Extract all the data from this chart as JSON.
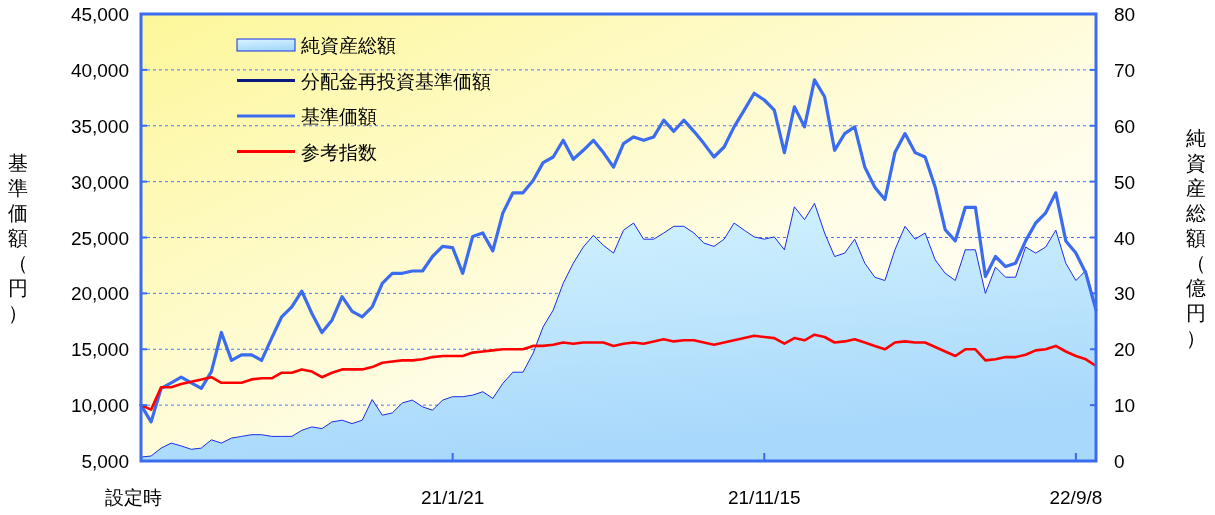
{
  "chart_data": {
    "type": "line",
    "ylabel": "基準価額（円）",
    "y2label": "純資産総額（億円）",
    "categories": [
      "設定時",
      null,
      null,
      null,
      null,
      null,
      null,
      null,
      null,
      null,
      null,
      null,
      null,
      null,
      null,
      null,
      null,
      null,
      null,
      null,
      null,
      null,
      null,
      null,
      null,
      null,
      null,
      null,
      null,
      null,
      null,
      "21/1/21",
      null,
      null,
      null,
      null,
      null,
      null,
      null,
      null,
      null,
      null,
      null,
      null,
      null,
      null,
      null,
      null,
      null,
      null,
      null,
      null,
      null,
      null,
      null,
      null,
      null,
      null,
      null,
      null,
      null,
      null,
      "21/11/15",
      null,
      null,
      null,
      null,
      null,
      null,
      null,
      null,
      null,
      null,
      null,
      null,
      null,
      null,
      null,
      null,
      null,
      null,
      null,
      null,
      null,
      null,
      null,
      null,
      null,
      null,
      null,
      null,
      null,
      null,
      "22/9/8",
      null,
      null
    ],
    "series": [
      {
        "name": "純資産総額",
        "type": "area",
        "axis": "y2",
        "color": "#a8d8fb",
        "values": [
          0.7,
          0.9,
          2.3,
          3.2,
          2.7,
          2.1,
          2.3,
          3.8,
          3.2,
          4.1,
          4.4,
          4.7,
          4.7,
          4.4,
          4.4,
          4.4,
          5.5,
          6.1,
          5.8,
          7.0,
          7.3,
          6.7,
          7.3,
          11.0,
          8.2,
          8.6,
          10.4,
          10.9,
          9.7,
          9.1,
          10.9,
          11.5,
          11.5,
          11.8,
          12.4,
          11.2,
          13.9,
          15.9,
          15.9,
          19.3,
          24.0,
          27.0,
          31.8,
          35.4,
          38.3,
          40.4,
          38.6,
          37.2,
          41.3,
          42.6,
          39.7,
          39.7,
          40.8,
          42.0,
          42.0,
          40.8,
          39.0,
          38.4,
          39.7,
          42.6,
          41.3,
          40.1,
          39.7,
          40.1,
          37.8,
          45.5,
          43.2,
          46.1,
          40.8,
          36.6,
          37.2,
          39.7,
          35.4,
          32.9,
          32.3,
          37.8,
          42.0,
          39.7,
          40.8,
          36.0,
          33.6,
          32.3,
          37.8,
          37.8,
          30.0,
          34.7,
          32.9,
          32.9,
          38.3,
          37.2,
          38.3,
          41.3,
          35.4,
          32.3,
          34.1,
          27.5
        ]
      },
      {
        "name": "分配金再投資基準価額",
        "color": "#0a1a80",
        "values": [
          null,
          null,
          null,
          null,
          null,
          null,
          null,
          null,
          null,
          null,
          null,
          null,
          null,
          null,
          null,
          null,
          null,
          null,
          null,
          null,
          null,
          null,
          null,
          null,
          null,
          null,
          null,
          null,
          null,
          null,
          null,
          null,
          null,
          null,
          null,
          null,
          null,
          null,
          null,
          null,
          null,
          null,
          null,
          null,
          null,
          null,
          null,
          null,
          null,
          null,
          null,
          null,
          null,
          null,
          null,
          null,
          null,
          null,
          null,
          null,
          null,
          null,
          null,
          null,
          null,
          null,
          null,
          null,
          null,
          null,
          null,
          null,
          null,
          null,
          null,
          null,
          null,
          null,
          null,
          null,
          null,
          null,
          null,
          null,
          null,
          null,
          null,
          null,
          null,
          null,
          null,
          null,
          null,
          null,
          null,
          null
        ]
      },
      {
        "name": "基準価額",
        "color": "#3b6cf0",
        "values": [
          10000,
          8500,
          11500,
          12000,
          12500,
          12000,
          11500,
          13000,
          16500,
          14000,
          14500,
          14500,
          14000,
          16000,
          17900,
          18800,
          20200,
          18200,
          16500,
          17600,
          19700,
          18400,
          17900,
          18800,
          20900,
          21800,
          21800,
          22000,
          22000,
          23300,
          24200,
          24100,
          21800,
          25100,
          25400,
          23800,
          27200,
          29000,
          29000,
          30100,
          31700,
          32200,
          33700,
          32000,
          32800,
          33700,
          32600,
          31300,
          33400,
          34000,
          33700,
          34000,
          35500,
          34500,
          35500,
          34500,
          33400,
          32200,
          33100,
          34900,
          36400,
          37900,
          37300,
          36400,
          32600,
          36700,
          34900,
          39100,
          37600,
          32800,
          34300,
          34900,
          31300,
          29500,
          28400,
          32600,
          34300,
          32600,
          32200,
          29500,
          25700,
          24700,
          27700,
          27700,
          21500,
          23300,
          22400,
          22700,
          24700,
          26300,
          27200,
          29000,
          24700,
          23600,
          21800,
          18500
        ]
      },
      {
        "name": "参考指数",
        "color": "#ff0000",
        "values": [
          10000,
          9600,
          11600,
          11600,
          11900,
          12100,
          12300,
          12500,
          12000,
          12000,
          12000,
          12300,
          12400,
          12400,
          12900,
          12900,
          13200,
          13000,
          12500,
          12900,
          13200,
          13200,
          13200,
          13400,
          13800,
          13900,
          14000,
          14000,
          14100,
          14300,
          14400,
          14400,
          14400,
          14700,
          14800,
          14900,
          15000,
          15000,
          15000,
          15300,
          15300,
          15400,
          15600,
          15500,
          15600,
          15600,
          15600,
          15300,
          15500,
          15600,
          15500,
          15700,
          15900,
          15700,
          15800,
          15800,
          15600,
          15400,
          15600,
          15800,
          16000,
          16200,
          16100,
          16000,
          15500,
          16000,
          15800,
          16300,
          16100,
          15600,
          15700,
          15900,
          15600,
          15300,
          15000,
          15600,
          15700,
          15600,
          15600,
          15200,
          14800,
          14400,
          15000,
          15000,
          14000,
          14100,
          14300,
          14300,
          14500,
          14900,
          15000,
          15300,
          14800,
          14400,
          14100,
          13500
        ]
      }
    ],
    "ylim": [
      5000,
      45000
    ],
    "yticks": [
      {
        "value": 5000,
        "label": "5,000"
      },
      {
        "value": 10000,
        "label": "10,000"
      },
      {
        "value": 15000,
        "label": "15,000"
      },
      {
        "value": 20000,
        "label": "20,000"
      },
      {
        "value": 25000,
        "label": "25,000"
      },
      {
        "value": 30000,
        "label": "30,000"
      },
      {
        "value": 35000,
        "label": "35,000"
      },
      {
        "value": 40000,
        "label": "40,000"
      },
      {
        "value": 45000,
        "label": "45,000"
      }
    ],
    "y2lim": [
      0,
      80
    ],
    "y2ticks": [
      0,
      10,
      20,
      30,
      40,
      50,
      60,
      70,
      80
    ],
    "grid": "y",
    "legend": "top left"
  }
}
